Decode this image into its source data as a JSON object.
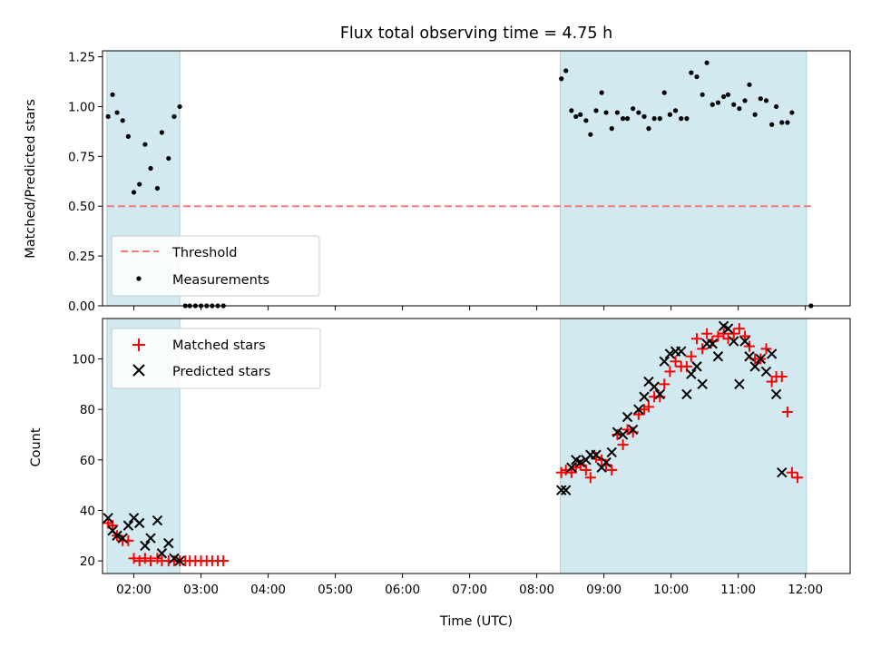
{
  "chart_data": [
    {
      "type": "scatter",
      "title": "Flux total observing time = 4.75 h",
      "ylabel": "Matched/Predicted stars",
      "xlabel": "",
      "x_unit": "UTC time (HH:MM)",
      "xlim": [
        "01:32",
        "12:40"
      ],
      "ylim": [
        0,
        1.28
      ],
      "yticks": [
        0,
        0.25,
        0.5,
        0.75,
        1.0,
        1.25
      ],
      "ytick_labels": [
        "0.00",
        "0.25",
        "0.50",
        "0.75",
        "1.00",
        "1.25"
      ],
      "xticks": [
        "02:00",
        "03:00",
        "04:00",
        "05:00",
        "06:00",
        "07:00",
        "08:00",
        "09:00",
        "10:00",
        "11:00",
        "12:00"
      ],
      "grid": false,
      "legend_position": "lower-left",
      "observing_windows": [
        {
          "start": "01:36",
          "end": "02:41",
          "color": "#d2e9f0"
        },
        {
          "start": "08:21",
          "end": "12:01",
          "color": "#d2e9f0"
        }
      ],
      "threshold": {
        "name": "Threshold",
        "value": 0.5,
        "x_range": [
          "01:36",
          "12:06"
        ],
        "color": "#f47b7b",
        "style": "dashed"
      },
      "series": [
        {
          "name": "Measurements",
          "color": "#000000",
          "marker": "dot",
          "points": [
            [
              "01:37",
              0.95
            ],
            [
              "01:41",
              1.06
            ],
            [
              "01:45",
              0.97
            ],
            [
              "01:50",
              0.93
            ],
            [
              "01:55",
              0.85
            ],
            [
              "02:00",
              0.57
            ],
            [
              "02:05",
              0.61
            ],
            [
              "02:10",
              0.81
            ],
            [
              "02:15",
              0.69
            ],
            [
              "02:21",
              0.59
            ],
            [
              "02:25",
              0.87
            ],
            [
              "02:31",
              0.74
            ],
            [
              "02:36",
              0.95
            ],
            [
              "02:41",
              1.0
            ],
            [
              "02:46",
              0.0
            ],
            [
              "02:50",
              0.0
            ],
            [
              "02:55",
              0.0
            ],
            [
              "03:00",
              0.0
            ],
            [
              "03:05",
              0.0
            ],
            [
              "03:10",
              0.0
            ],
            [
              "03:15",
              0.0
            ],
            [
              "03:20",
              0.0
            ],
            [
              "08:22",
              1.14
            ],
            [
              "08:26",
              1.18
            ],
            [
              "08:31",
              0.98
            ],
            [
              "08:35",
              0.95
            ],
            [
              "08:39",
              0.96
            ],
            [
              "08:44",
              0.93
            ],
            [
              "08:48",
              0.86
            ],
            [
              "08:53",
              0.98
            ],
            [
              "08:58",
              1.07
            ],
            [
              "09:02",
              0.97
            ],
            [
              "09:07",
              0.89
            ],
            [
              "09:12",
              0.97
            ],
            [
              "09:17",
              0.94
            ],
            [
              "09:21",
              0.94
            ],
            [
              "09:26",
              0.99
            ],
            [
              "09:31",
              0.97
            ],
            [
              "09:36",
              0.95
            ],
            [
              "09:40",
              0.89
            ],
            [
              "09:45",
              0.94
            ],
            [
              "09:50",
              0.94
            ],
            [
              "09:54",
              1.07
            ],
            [
              "09:59",
              0.96
            ],
            [
              "10:04",
              0.98
            ],
            [
              "10:09",
              0.94
            ],
            [
              "10:14",
              0.94
            ],
            [
              "10:18",
              1.17
            ],
            [
              "10:23",
              1.15
            ],
            [
              "10:28",
              1.06
            ],
            [
              "10:32",
              1.22
            ],
            [
              "10:37",
              1.01
            ],
            [
              "10:42",
              1.02
            ],
            [
              "10:47",
              1.05
            ],
            [
              "10:51",
              1.06
            ],
            [
              "10:56",
              1.01
            ],
            [
              "11:01",
              0.99
            ],
            [
              "11:06",
              1.03
            ],
            [
              "11:10",
              1.11
            ],
            [
              "11:15",
              0.96
            ],
            [
              "11:20",
              1.04
            ],
            [
              "11:25",
              1.03
            ],
            [
              "11:30",
              0.91
            ],
            [
              "11:34",
              1.0
            ],
            [
              "11:39",
              0.92
            ],
            [
              "11:44",
              0.92
            ],
            [
              "11:48",
              0.97
            ],
            [
              "12:05",
              0.0
            ]
          ]
        }
      ]
    },
    {
      "type": "scatter",
      "title": "",
      "ylabel": "Count",
      "xlabel": "Time (UTC)",
      "x_unit": "UTC time (HH:MM)",
      "xlim": [
        "01:32",
        "12:40"
      ],
      "ylim": [
        15,
        116
      ],
      "yticks": [
        20,
        40,
        60,
        80,
        100
      ],
      "ytick_labels": [
        "20",
        "40",
        "60",
        "80",
        "100"
      ],
      "xticks": [
        "02:00",
        "03:00",
        "04:00",
        "05:00",
        "06:00",
        "07:00",
        "08:00",
        "09:00",
        "10:00",
        "11:00",
        "12:00"
      ],
      "xtick_labels": [
        "02:00",
        "03:00",
        "04:00",
        "05:00",
        "06:00",
        "07:00",
        "08:00",
        "09:00",
        "10:00",
        "11:00",
        "12:00"
      ],
      "grid": false,
      "legend_position": "upper-left",
      "observing_windows": [
        {
          "start": "01:36",
          "end": "02:41",
          "color": "#d2e9f0"
        },
        {
          "start": "08:21",
          "end": "12:01",
          "color": "#d2e9f0"
        }
      ],
      "series": [
        {
          "name": "Matched stars",
          "color": "#ff0000",
          "marker": "plus",
          "points": [
            [
              "01:37",
              35
            ],
            [
              "01:41",
              34
            ],
            [
              "01:45",
              30
            ],
            [
              "01:50",
              28
            ],
            [
              "01:55",
              28
            ],
            [
              "02:00",
              21
            ],
            [
              "02:05",
              20
            ],
            [
              "02:10",
              21
            ],
            [
              "02:15",
              20
            ],
            [
              "02:21",
              21
            ],
            [
              "02:25",
              20
            ],
            [
              "02:31",
              20
            ],
            [
              "02:36",
              20
            ],
            [
              "02:41",
              20
            ],
            [
              "02:46",
              20
            ],
            [
              "02:50",
              20
            ],
            [
              "02:55",
              20
            ],
            [
              "03:00",
              20
            ],
            [
              "03:05",
              20
            ],
            [
              "03:10",
              20
            ],
            [
              "03:15",
              20
            ],
            [
              "03:20",
              20
            ],
            [
              "08:22",
              55
            ],
            [
              "08:26",
              56
            ],
            [
              "08:31",
              55
            ],
            [
              "08:35",
              57
            ],
            [
              "08:39",
              58
            ],
            [
              "08:44",
              56
            ],
            [
              "08:48",
              53
            ],
            [
              "08:53",
              61
            ],
            [
              "08:58",
              60
            ],
            [
              "09:02",
              58
            ],
            [
              "09:07",
              56
            ],
            [
              "09:12",
              70
            ],
            [
              "09:17",
              66
            ],
            [
              "09:21",
              72
            ],
            [
              "09:26",
              71
            ],
            [
              "09:31",
              78
            ],
            [
              "09:36",
              80
            ],
            [
              "09:40",
              81
            ],
            [
              "09:45",
              85
            ],
            [
              "09:50",
              85
            ],
            [
              "09:54",
              90
            ],
            [
              "09:59",
              95
            ],
            [
              "10:04",
              99
            ],
            [
              "10:09",
              97
            ],
            [
              "10:14",
              97
            ],
            [
              "10:18",
              101
            ],
            [
              "10:23",
              108
            ],
            [
              "10:28",
              104
            ],
            [
              "10:32",
              110
            ],
            [
              "10:37",
              107
            ],
            [
              "10:42",
              109
            ],
            [
              "10:47",
              110
            ],
            [
              "10:51",
              108
            ],
            [
              "10:56",
              110
            ],
            [
              "11:01",
              112
            ],
            [
              "11:06",
              109
            ],
            [
              "11:10",
              105
            ],
            [
              "11:15",
              100
            ],
            [
              "11:20",
              100
            ],
            [
              "11:25",
              104
            ],
            [
              "11:30",
              91
            ],
            [
              "11:34",
              93
            ],
            [
              "11:39",
              93
            ],
            [
              "11:44",
              79
            ],
            [
              "11:48",
              55
            ],
            [
              "11:53",
              53
            ]
          ]
        },
        {
          "name": "Predicted stars",
          "color": "#000000",
          "marker": "x",
          "points": [
            [
              "01:37",
              37
            ],
            [
              "01:41",
              32
            ],
            [
              "01:45",
              30
            ],
            [
              "01:50",
              29
            ],
            [
              "01:55",
              34
            ],
            [
              "02:00",
              37
            ],
            [
              "02:05",
              35
            ],
            [
              "02:10",
              26
            ],
            [
              "02:15",
              29
            ],
            [
              "02:21",
              36
            ],
            [
              "02:25",
              23
            ],
            [
              "02:31",
              27
            ],
            [
              "02:36",
              21
            ],
            [
              "02:41",
              20
            ],
            [
              "08:22",
              48
            ],
            [
              "08:26",
              48
            ],
            [
              "08:31",
              57
            ],
            [
              "08:35",
              60
            ],
            [
              "08:39",
              59
            ],
            [
              "08:44",
              60
            ],
            [
              "08:48",
              62
            ],
            [
              "08:53",
              62
            ],
            [
              "08:58",
              57
            ],
            [
              "09:02",
              59
            ],
            [
              "09:07",
              63
            ],
            [
              "09:12",
              71
            ],
            [
              "09:17",
              70
            ],
            [
              "09:21",
              77
            ],
            [
              "09:26",
              72
            ],
            [
              "09:31",
              80
            ],
            [
              "09:36",
              85
            ],
            [
              "09:40",
              91
            ],
            [
              "09:45",
              89
            ],
            [
              "09:50",
              86
            ],
            [
              "09:54",
              99
            ],
            [
              "09:59",
              102
            ],
            [
              "10:04",
              103
            ],
            [
              "10:09",
              103
            ],
            [
              "10:14",
              86
            ],
            [
              "10:18",
              94
            ],
            [
              "10:23",
              97
            ],
            [
              "10:28",
              90
            ],
            [
              "10:32",
              106
            ],
            [
              "10:37",
              106
            ],
            [
              "10:42",
              101
            ],
            [
              "10:47",
              113
            ],
            [
              "10:51",
              112
            ],
            [
              "10:56",
              107
            ],
            [
              "11:01",
              90
            ],
            [
              "11:06",
              107
            ],
            [
              "11:10",
              101
            ],
            [
              "11:15",
              97
            ],
            [
              "11:20",
              100
            ],
            [
              "11:25",
              95
            ],
            [
              "11:30",
              102
            ],
            [
              "11:34",
              86
            ],
            [
              "11:39",
              55
            ]
          ]
        }
      ]
    }
  ]
}
